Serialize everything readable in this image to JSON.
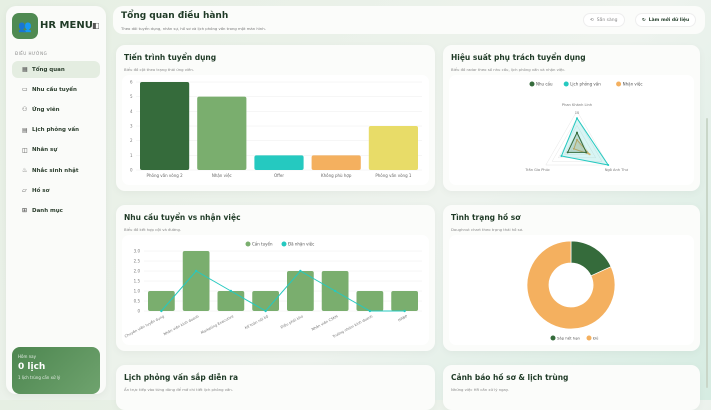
{
  "sidebar": {
    "brand": "HR MENU",
    "section": "ĐIỀU HƯỚNG",
    "items": [
      {
        "label": "Tổng quan",
        "icon": "dashboard-icon",
        "active": true
      },
      {
        "label": "Nhu cầu tuyển",
        "icon": "briefcase-icon"
      },
      {
        "label": "Ứng viên",
        "icon": "users-icon"
      },
      {
        "label": "Lịch phỏng vấn",
        "icon": "calendar-icon"
      },
      {
        "label": "Nhân sự",
        "icon": "id-badge-icon"
      },
      {
        "label": "Nhắc sinh nhật",
        "icon": "cake-icon"
      },
      {
        "label": "Hồ sơ",
        "icon": "folder-icon"
      },
      {
        "label": "Danh mục",
        "icon": "grid-icon"
      }
    ],
    "today": {
      "label": "Hôm nay",
      "value": "0 lịch",
      "note": "1 lịch trùng cần xử lý"
    }
  },
  "header": {
    "title": "Tổng quan điều hành",
    "subtitle": "Theo dõi tuyển dụng, nhân sự, hồ sơ và lịch phỏng vấn trong một màn hình.",
    "status": "Sẵn sàng",
    "refresh": "Làm mới dữ liệu"
  },
  "cards": {
    "pipeline": {
      "title": "Tiến trình tuyển dụng",
      "subtitle": "Biểu đồ cột theo trạng thái ứng viên."
    },
    "radar": {
      "title": "Hiệu suất phụ trách tuyển dụng",
      "subtitle": "Biểu đồ radar theo số nhu cầu, lịch phỏng vấn và nhận việc."
    },
    "combo": {
      "title": "Nhu cầu tuyển vs nhận việc",
      "subtitle": "Biểu đồ kết hợp cột và đường."
    },
    "docs": {
      "title": "Tình trạng hồ sơ",
      "subtitle": "Doughnut chart theo trạng thái hồ sơ."
    },
    "interviews": {
      "title": "Lịch phỏng vấn sắp diễn ra",
      "subtitle": "Ấn trực tiếp vào từng dòng để mở chi tiết lịch phỏng vấn."
    },
    "alerts": {
      "title": "Cảnh báo hồ sơ & lịch trùng",
      "subtitle": "Những việc HR cần xử lý ngay."
    }
  },
  "chart_data": [
    {
      "type": "bar",
      "title": "Tiến trình tuyển dụng",
      "categories": [
        "Phỏng vấn vòng 2",
        "Nhận việc",
        "Offer",
        "Không phù hợp",
        "Phỏng vấn vòng 1"
      ],
      "values": [
        6,
        5,
        1,
        1,
        3
      ],
      "colors": [
        "#356b3b",
        "#7aae6e",
        "#25c9c0",
        "#f4b05f",
        "#e8dc68"
      ],
      "ylim": [
        0,
        6
      ],
      "yticks": [
        0,
        1,
        2,
        3,
        4,
        5,
        6
      ]
    },
    {
      "type": "radar",
      "title": "Hiệu suất phụ trách tuyển dụng",
      "axes": [
        "Phan Khánh Linh",
        "Ngô Anh Thư",
        "Trần Gia Phúc"
      ],
      "rmax": 10,
      "tick_label": "10",
      "series": [
        {
          "name": "Nhu cầu",
          "color": "#356b3b",
          "values": [
            4,
            3,
            3
          ]
        },
        {
          "name": "Lịch phỏng vấn",
          "color": "#25c9c0",
          "values": [
            8,
            10,
            5
          ]
        },
        {
          "name": "Nhận việc",
          "color": "#f4b05f",
          "values": [
            2,
            4,
            1
          ]
        }
      ]
    },
    {
      "type": "bar+line",
      "title": "Nhu cầu tuyển vs nhận việc",
      "categories": [
        "Chuyên viên tuyển dụng",
        "Nhân viên kinh doanh",
        "Marketing Executive",
        "Kế toán nội bộ",
        "Điều phối kho",
        "Nhân viên CSKH",
        "Trưởng nhóm kinh doanh",
        "HRBP"
      ],
      "ylim": [
        0,
        3
      ],
      "yticks": [
        "0",
        "0.5",
        "1.0",
        "1.5",
        "2.0",
        "2.5",
        "3.0"
      ],
      "series": [
        {
          "name": "Cần tuyển",
          "type": "bar",
          "color": "#7aae6e",
          "values": [
            1,
            3,
            1,
            1,
            2,
            2,
            1,
            1
          ]
        },
        {
          "name": "Đã nhận việc",
          "type": "line",
          "color": "#25c9c0",
          "values": [
            0,
            2,
            1,
            0,
            2,
            1,
            0,
            0
          ]
        }
      ]
    },
    {
      "type": "pie",
      "title": "Tình trạng hồ sơ",
      "labels": [
        "Sắp hết hạn",
        "Đủ"
      ],
      "values": [
        2,
        9
      ],
      "colors": [
        "#356b3b",
        "#f4b05f"
      ],
      "legend": "bottom"
    }
  ]
}
